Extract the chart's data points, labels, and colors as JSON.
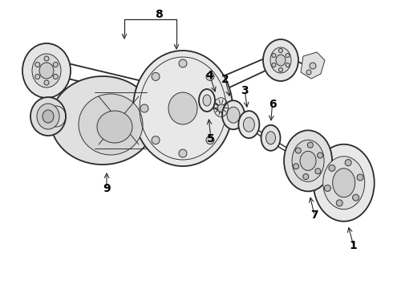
{
  "background_color": "#ffffff",
  "line_color": "#2a2a2a",
  "label_color": "#000000",
  "fig_width": 4.9,
  "fig_height": 3.6,
  "dpi": 100,
  "label_fontsize": 10,
  "lw_main": 1.3,
  "lw_thin": 0.65,
  "lw_thick": 2.0
}
